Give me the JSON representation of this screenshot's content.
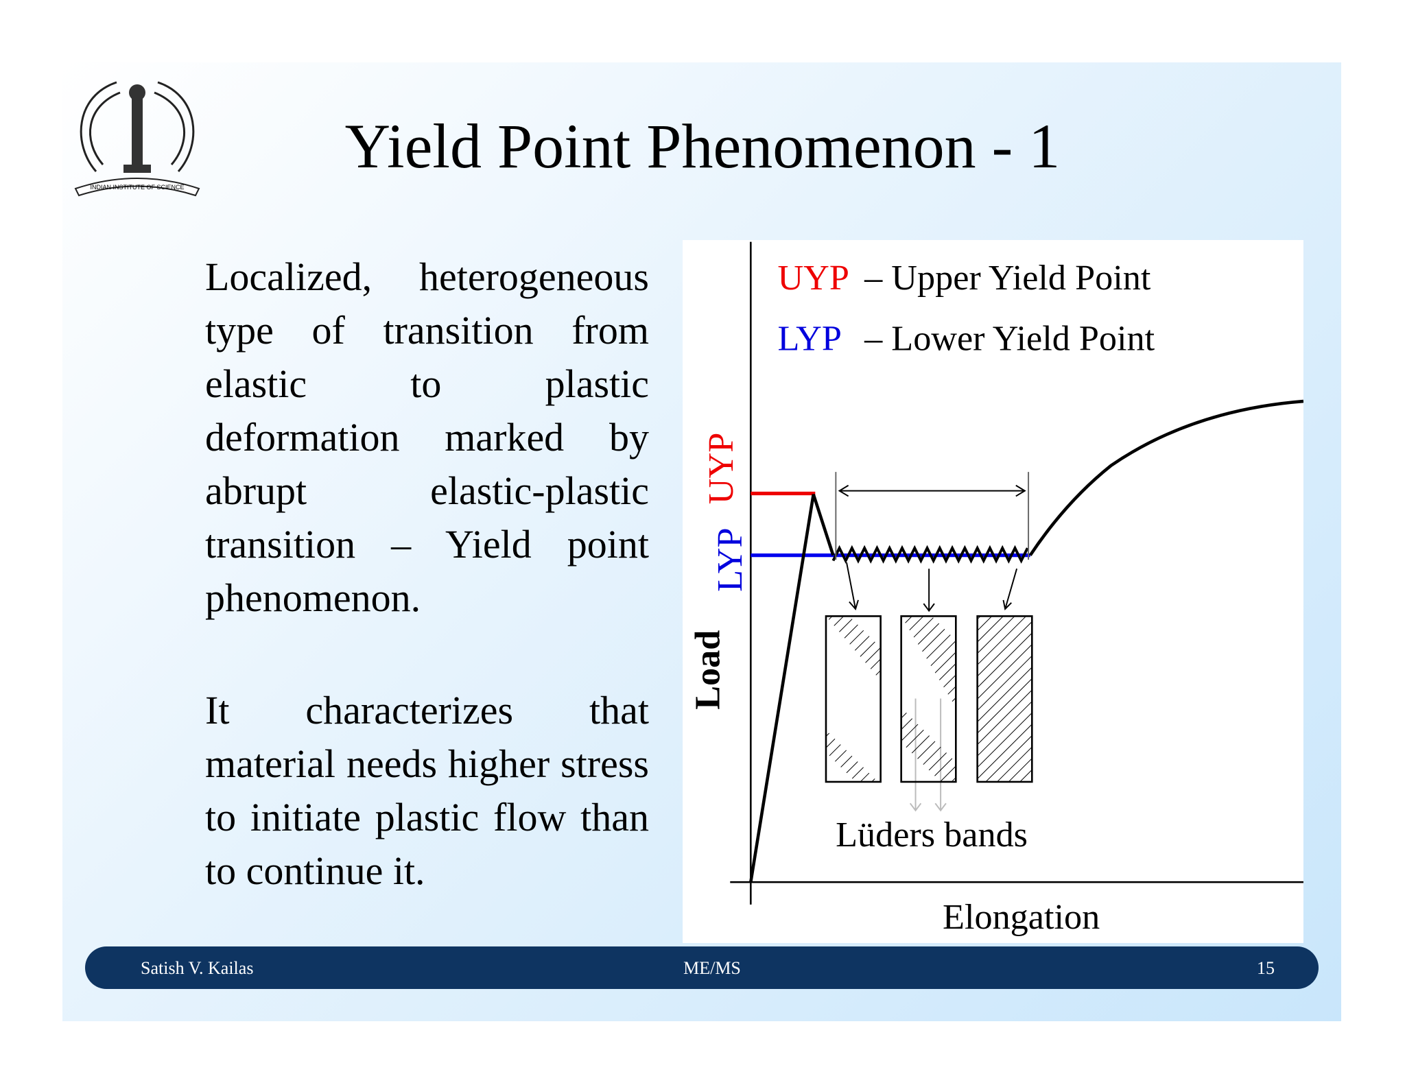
{
  "header": {
    "title": "Yield Point Phenomenon - 1",
    "logo_text": "INDIAN INSTITUTE OF SCIENCE"
  },
  "body": {
    "paragraphs": [
      "Localized, heterogeneous type of transition from elastic to plastic deformation marked by abrupt elastic-plastic transition – Yield point phenomenon.",
      "It characterizes that material needs higher stress to initiate plastic flow than to continue it."
    ]
  },
  "diagram": {
    "legend": [
      {
        "abbr": "UYP",
        "text": "– Upper Yield Point"
      },
      {
        "abbr": "LYP",
        "text": "– Lower Yield Point"
      }
    ],
    "y_labels": {
      "uyp": "UYP",
      "lyp": "LYP",
      "load": "Load"
    },
    "bands_label": "Lüders bands",
    "x_label": "Elongation"
  },
  "footer": {
    "author": "Satish V. Kailas",
    "course": "ME/MS",
    "page": "15"
  }
}
